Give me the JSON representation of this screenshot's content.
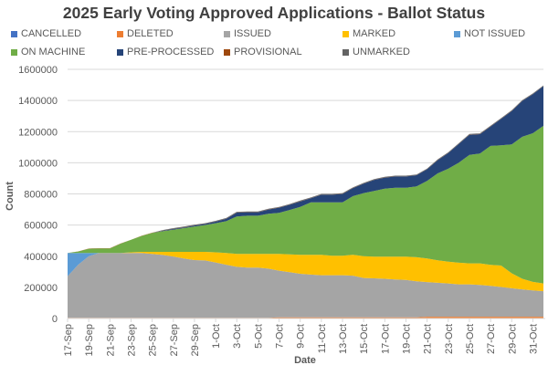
{
  "chart_data": {
    "type": "area",
    "stacked": true,
    "title": "2025 Early Voting Approved Applications - Ballot Status",
    "xlabel": "Date",
    "ylabel": "Count",
    "ylim": [
      0,
      1600000
    ],
    "yticks": [
      0,
      200000,
      400000,
      600000,
      800000,
      1000000,
      1200000,
      1400000,
      1600000
    ],
    "grid": true,
    "legend_position": "top",
    "x": [
      "17-Sep",
      "18-Sep",
      "19-Sep",
      "20-Sep",
      "21-Sep",
      "22-Sep",
      "23-Sep",
      "24-Sep",
      "25-Sep",
      "26-Sep",
      "27-Sep",
      "28-Sep",
      "29-Sep",
      "30-Sep",
      "1-Oct",
      "2-Oct",
      "3-Oct",
      "4-Oct",
      "5-Oct",
      "6-Oct",
      "7-Oct",
      "8-Oct",
      "9-Oct",
      "10-Oct",
      "11-Oct",
      "12-Oct",
      "13-Oct",
      "14-Oct",
      "15-Oct",
      "16-Oct",
      "17-Oct",
      "18-Oct",
      "19-Oct",
      "20-Oct",
      "21-Oct",
      "22-Oct",
      "23-Oct",
      "24-Oct",
      "25-Oct",
      "26-Oct",
      "27-Oct",
      "28-Oct",
      "29-Oct",
      "30-Oct",
      "31-Oct",
      "1-Nov"
    ],
    "xtick_labels": [
      "17-Sep",
      "19-Sep",
      "21-Sep",
      "23-Sep",
      "25-Sep",
      "27-Sep",
      "29-Sep",
      "1-Oct",
      "3-Oct",
      "5-Oct",
      "7-Oct",
      "9-Oct",
      "11-Oct",
      "13-Oct",
      "15-Oct",
      "17-Oct",
      "19-Oct",
      "21-Oct",
      "23-Oct",
      "25-Oct",
      "27-Oct",
      "29-Oct",
      "31-Oct"
    ],
    "series": [
      {
        "name": "CANCELLED",
        "color": "#4472C4",
        "values": [
          1000,
          1000,
          1000,
          1000,
          1000,
          1000,
          1000,
          1000,
          1000,
          1000,
          1000,
          1000,
          1000,
          1000,
          1000,
          1000,
          1000,
          1000,
          1000,
          1000,
          1000,
          1000,
          1000,
          1000,
          1000,
          1000,
          1000,
          1000,
          1000,
          1000,
          1000,
          1000,
          1000,
          1000,
          1000,
          1000,
          1000,
          1000,
          1000,
          1000,
          1000,
          1000,
          1000,
          1000,
          1000,
          1000
        ]
      },
      {
        "name": "DELETED",
        "color": "#ED7D31",
        "values": [
          3000,
          3000,
          3000,
          3000,
          3000,
          3000,
          3000,
          3000,
          3000,
          3000,
          3000,
          3000,
          3000,
          3000,
          3000,
          3000,
          3000,
          3000,
          3000,
          3000,
          6000,
          6000,
          6000,
          6000,
          6000,
          6000,
          6000,
          6000,
          6000,
          6000,
          6000,
          6000,
          6000,
          6000,
          10000,
          10000,
          10000,
          10000,
          10000,
          10000,
          10000,
          10000,
          10000,
          10000,
          10000,
          10000
        ]
      },
      {
        "name": "ISSUED",
        "color": "#A5A5A5",
        "values": [
          267000,
          341000,
          396000,
          416000,
          416000,
          416000,
          416000,
          416000,
          411000,
          404000,
          394000,
          381000,
          371000,
          369000,
          356000,
          341000,
          328000,
          323000,
          323000,
          316000,
          300000,
          290000,
          280000,
          275000,
          271000,
          271000,
          271000,
          268000,
          253000,
          251000,
          248000,
          243000,
          241000,
          232000,
          223000,
          218000,
          214000,
          208000,
          208000,
          204000,
          198000,
          191000,
          183000,
          176000,
          169000,
          164000
        ]
      },
      {
        "name": "MARKED",
        "color": "#FFC000",
        "values": [
          0,
          0,
          0,
          0,
          0,
          0,
          5000,
          8000,
          13000,
          20000,
          30000,
          43000,
          53000,
          55000,
          65000,
          75000,
          83000,
          88000,
          88000,
          95000,
          108000,
          115000,
          122000,
          127000,
          131000,
          125000,
          125000,
          134000,
          140000,
          139000,
          142000,
          147000,
          149000,
          154000,
          151000,
          145000,
          140000,
          139000,
          135000,
          139000,
          135000,
          138000,
          96000,
          68000,
          55000,
          50000
        ]
      },
      {
        "name": "NOT ISSUED",
        "color": "#5B9BD5",
        "values": [
          149000,
          75000,
          20000,
          0,
          0,
          0,
          0,
          0,
          0,
          0,
          0,
          0,
          0,
          0,
          0,
          0,
          0,
          0,
          0,
          0,
          0,
          0,
          0,
          0,
          0,
          0,
          0,
          0,
          0,
          0,
          0,
          0,
          0,
          0,
          0,
          0,
          0,
          0,
          0,
          0,
          0,
          0,
          0,
          0,
          0,
          0
        ]
      },
      {
        "name": "ON MACHINE",
        "color": "#70AD47",
        "values": [
          0,
          10000,
          28000,
          30000,
          30000,
          60000,
          80000,
          102000,
          122000,
          132000,
          142000,
          152000,
          162000,
          172000,
          187000,
          205000,
          240000,
          245000,
          245000,
          257000,
          263000,
          285000,
          308000,
          337000,
          337000,
          343000,
          343000,
          377000,
          405000,
          422000,
          437000,
          443000,
          443000,
          455000,
          498000,
          558000,
          597000,
          643000,
          696000,
          705000,
          764000,
          772000,
          828000,
          912000,
          955000,
          1012000
        ]
      },
      {
        "name": "PRE-PROCESSED",
        "color": "#264478",
        "values": [
          0,
          0,
          0,
          0,
          0,
          0,
          0,
          0,
          0,
          3000,
          5000,
          5000,
          7000,
          7000,
          10000,
          15000,
          25000,
          22000,
          22000,
          28000,
          34000,
          33000,
          35000,
          26000,
          49000,
          49000,
          54000,
          52000,
          61000,
          71000,
          71000,
          72000,
          72000,
          72000,
          75000,
          85000,
          100000,
          120000,
          130000,
          125000,
          125000,
          170000,
          215000,
          230000,
          250000,
          255000
        ]
      },
      {
        "name": "PROVISIONAL",
        "color": "#9E480E",
        "values": [
          1000,
          1000,
          1000,
          1000,
          1000,
          1000,
          1000,
          1000,
          1000,
          1000,
          1000,
          1000,
          1000,
          1000,
          1000,
          1000,
          1000,
          1000,
          1000,
          1000,
          1000,
          1000,
          1000,
          1000,
          1000,
          1000,
          1000,
          1000,
          1000,
          1000,
          1000,
          1000,
          1000,
          1000,
          1000,
          1000,
          1000,
          1000,
          1000,
          1000,
          1000,
          1000,
          1000,
          1000,
          1000,
          1000
        ]
      },
      {
        "name": "UNMARKED",
        "color": "#636363",
        "values": [
          0,
          0,
          0,
          0,
          0,
          0,
          0,
          0,
          0,
          4000,
          4000,
          4000,
          4000,
          4000,
          4000,
          4000,
          4000,
          4000,
          4000,
          4000,
          4000,
          4000,
          4000,
          4000,
          4000,
          4000,
          4000,
          4000,
          4000,
          4000,
          4000,
          4000,
          4000,
          4000,
          4000,
          4000,
          4000,
          4000,
          4000,
          4000,
          4000,
          4000,
          4000,
          4000,
          4000,
          4000
        ]
      }
    ]
  }
}
